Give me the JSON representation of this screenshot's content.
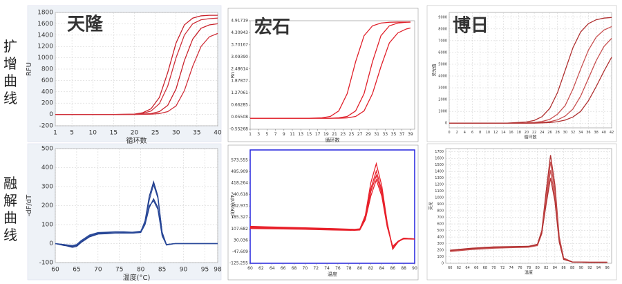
{
  "row_labels": [
    "扩增曲线",
    "融解曲线"
  ],
  "chart_data": [
    {
      "type": "line",
      "title": "天隆",
      "xlabel": "循环数",
      "ylabel": "RFU",
      "grid": true,
      "x": [
        1,
        5,
        10,
        15,
        20,
        22,
        24,
        26,
        28,
        30,
        32,
        34,
        36,
        38,
        40
      ],
      "xlim": [
        1,
        40
      ],
      "xticks": [
        1,
        5,
        10,
        15,
        20,
        25,
        30,
        35,
        40
      ],
      "ylim": [
        -200,
        1800
      ],
      "yticks": [
        -200,
        0,
        200,
        400,
        600,
        800,
        1000,
        1200,
        1400,
        1600,
        1800
      ],
      "series": [
        {
          "color": "#c8202a",
          "values": [
            0,
            0,
            0,
            0,
            5,
            30,
            100,
            300,
            740,
            1260,
            1580,
            1700,
            1740,
            1750,
            1750
          ]
        },
        {
          "color": "#d0303a",
          "values": [
            0,
            0,
            0,
            0,
            3,
            18,
            60,
            190,
            500,
            1000,
            1400,
            1600,
            1670,
            1690,
            1700
          ]
        },
        {
          "color": "#c8202a",
          "values": [
            0,
            0,
            0,
            0,
            0,
            5,
            15,
            50,
            160,
            450,
            950,
            1330,
            1520,
            1580,
            1600
          ]
        },
        {
          "color": "#d0303a",
          "values": [
            0,
            0,
            0,
            0,
            0,
            2,
            5,
            15,
            50,
            150,
            420,
            850,
            1200,
            1370,
            1430
          ]
        }
      ]
    },
    {
      "type": "line",
      "title": "宏石",
      "xlabel": "循环数",
      "ylabel": "Rn",
      "grid": false,
      "x": [
        1,
        5,
        10,
        15,
        18,
        20,
        22,
        24,
        26,
        28,
        30,
        32,
        34,
        36,
        38,
        39
      ],
      "xlim": [
        1,
        40
      ],
      "xticks": [
        1,
        3,
        5,
        7,
        9,
        11,
        13,
        15,
        17,
        19,
        21,
        23,
        25,
        27,
        29,
        31,
        33,
        35,
        37,
        39
      ],
      "ylim": [
        -0.55268,
        4.91719
      ],
      "yticks": [
        -0.55268,
        0.05508,
        0.66285,
        1.27061,
        1.87837,
        2.48614,
        {
          "value": 3.0939,
          "label": "3.09390"
        },
        3.70167,
        4.30943,
        4.91719
      ],
      "series": [
        {
          "color": "#e0202a",
          "values": [
            0,
            0,
            0,
            0,
            0.02,
            0.09,
            0.37,
            1.24,
            2.85,
            4.16,
            4.66,
            4.8,
            4.84,
            4.85,
            4.85,
            4.85
          ]
        },
        {
          "color": "#e0202a",
          "values": [
            0,
            0,
            0,
            0,
            0,
            0,
            0.02,
            0.09,
            0.37,
            1.24,
            2.85,
            4.16,
            4.66,
            4.8,
            4.84,
            4.85
          ]
        },
        {
          "color": "#e0202a",
          "values": [
            0,
            0,
            0,
            0,
            0,
            0,
            0,
            0.02,
            0.09,
            0.37,
            1.24,
            2.6,
            3.8,
            4.3,
            4.5,
            4.55
          ]
        }
      ]
    },
    {
      "type": "line",
      "title": "博日",
      "xlabel": "循环数",
      "ylabel": "荧光值",
      "grid": true,
      "x": [
        0,
        5,
        10,
        15,
        20,
        22,
        24,
        26,
        28,
        30,
        32,
        34,
        36,
        38,
        40,
        42
      ],
      "xlim": [
        0,
        42
      ],
      "xticks": [
        0,
        2,
        4,
        6,
        8,
        10,
        12,
        14,
        16,
        18,
        20,
        22,
        24,
        26,
        28,
        30,
        32,
        34,
        36,
        38,
        40,
        42
      ],
      "ylim": [
        -400,
        9400
      ],
      "yticks": [
        0,
        1000,
        2000,
        3000,
        4000,
        5000,
        6000,
        7000,
        8000,
        9000
      ],
      "series": [
        {
          "color": "#b03030",
          "values": [
            0,
            0,
            0,
            0,
            100,
            230,
            550,
            1250,
            2590,
            4500,
            6410,
            7750,
            8450,
            8780,
            8920,
            8970
          ]
        },
        {
          "color": "#c85050",
          "values": [
            0,
            0,
            0,
            0,
            20,
            60,
            140,
            320,
            760,
            1500,
            2900,
            4600,
            6200,
            7300,
            7900,
            8200
          ]
        },
        {
          "color": "#c85050",
          "values": [
            0,
            0,
            0,
            0,
            0,
            20,
            50,
            120,
            280,
            600,
            1200,
            2300,
            3800,
            5300,
            6500,
            7200
          ]
        },
        {
          "color": "#b03030",
          "values": [
            0,
            0,
            0,
            0,
            0,
            0,
            20,
            50,
            120,
            260,
            520,
            1000,
            1900,
            3100,
            4400,
            5600
          ]
        }
      ]
    },
    {
      "type": "line",
      "xlabel": "温度(°C)",
      "ylabel": "-dF/dT",
      "grid": true,
      "x": [
        60,
        62,
        64,
        65,
        66,
        68,
        70,
        72,
        74,
        76,
        78,
        80,
        81,
        82,
        83,
        84,
        85,
        86,
        88,
        90,
        95,
        98
      ],
      "xlim": [
        60,
        98
      ],
      "xticks": [
        60,
        65,
        70,
        75,
        80,
        85,
        90,
        95,
        98
      ],
      "ylim": [
        -100,
        500
      ],
      "yticks": [
        -100,
        0,
        100,
        200,
        300,
        400,
        500
      ],
      "series": [
        {
          "color": "#1f3a8a",
          "values": [
            0,
            -10,
            -15,
            -10,
            10,
            40,
            55,
            58,
            60,
            60,
            58,
            62,
            120,
            250,
            325,
            250,
            60,
            -5,
            0,
            0,
            0,
            0
          ]
        },
        {
          "color": "#2a4a9a",
          "values": [
            0,
            -5,
            -10,
            -5,
            15,
            45,
            58,
            60,
            62,
            62,
            60,
            65,
            115,
            230,
            310,
            240,
            55,
            -5,
            0,
            0,
            0,
            0
          ]
        },
        {
          "color": "#1f3a8a",
          "values": [
            0,
            -8,
            -20,
            -15,
            5,
            35,
            50,
            52,
            55,
            55,
            55,
            58,
            100,
            190,
            235,
            190,
            45,
            -8,
            0,
            0,
            0,
            0
          ]
        },
        {
          "color": "#2a4a9a",
          "values": [
            0,
            -5,
            -12,
            -8,
            10,
            40,
            52,
            55,
            55,
            56,
            55,
            60,
            105,
            200,
            225,
            180,
            40,
            -5,
            0,
            0,
            0,
            0
          ]
        }
      ]
    },
    {
      "type": "line",
      "xlabel": "温度",
      "ylabel": "-d(Rn)/dT",
      "grid": false,
      "x": [
        60,
        65,
        70,
        75,
        79,
        80,
        81,
        82,
        83,
        84,
        85,
        86,
        87,
        88,
        90
      ],
      "xlim": [
        60,
        90
      ],
      "xticks": [
        60,
        62,
        64,
        66,
        68,
        70,
        72,
        74,
        76,
        78,
        80,
        82,
        84,
        86,
        88,
        90
      ],
      "ylim": [
        -125.255,
        643
      ],
      "yticks": [
        -125.255,
        -47.609,
        30.036,
        107.682,
        185.327,
        262.973,
        340.618,
        418.264,
        495.909,
        573.555
      ],
      "series": [
        {
          "color": "#e8202a",
          "values": [
            125,
            120,
            115,
            110,
            105,
            108,
            200,
            420,
            550,
            400,
            150,
            -30,
            20,
            45,
            40
          ]
        },
        {
          "color": "#e8202a",
          "values": [
            115,
            112,
            110,
            105,
            100,
            105,
            190,
            380,
            500,
            370,
            140,
            -20,
            25,
            45,
            40
          ]
        },
        {
          "color": "#e8202a",
          "values": [
            110,
            108,
            105,
            100,
            98,
            100,
            170,
            330,
            440,
            330,
            120,
            -10,
            25,
            40,
            38
          ]
        },
        {
          "color": "#e8202a",
          "values": [
            120,
            116,
            112,
            106,
            102,
            106,
            180,
            360,
            470,
            350,
            130,
            -25,
            20,
            42,
            40
          ]
        }
      ]
    },
    {
      "type": "line",
      "xlabel": "温度",
      "ylabel": "荧光",
      "grid": true,
      "x": [
        60,
        65,
        70,
        75,
        78,
        80,
        81,
        82,
        83,
        84,
        85,
        86,
        88,
        92,
        96
      ],
      "xlim": [
        59,
        97
      ],
      "xticks": [
        60,
        62,
        64,
        66,
        68,
        70,
        72,
        74,
        76,
        78,
        80,
        82,
        84,
        86,
        88,
        90,
        92,
        94,
        96
      ],
      "ylim": [
        0,
        1750
      ],
      "yticks": [
        0,
        100,
        200,
        300,
        400,
        500,
        600,
        700,
        800,
        900,
        1000,
        1100,
        1200,
        1300,
        1400,
        1500,
        1600,
        1700
      ],
      "series": [
        {
          "color": "#b03030",
          "values": [
            200,
            230,
            250,
            255,
            260,
            290,
            500,
            1100,
            1650,
            1200,
            400,
            80,
            20,
            15,
            15
          ]
        },
        {
          "color": "#c85050",
          "values": [
            190,
            220,
            240,
            245,
            250,
            280,
            480,
            1000,
            1550,
            1100,
            370,
            70,
            20,
            15,
            15
          ]
        },
        {
          "color": "#c85050",
          "values": [
            180,
            210,
            230,
            240,
            245,
            270,
            450,
            950,
            1420,
            1000,
            340,
            60,
            20,
            15,
            15
          ]
        },
        {
          "color": "#b03030",
          "values": [
            195,
            225,
            245,
            250,
            255,
            285,
            470,
            900,
            1300,
            950,
            320,
            60,
            20,
            15,
            15
          ]
        }
      ]
    }
  ]
}
